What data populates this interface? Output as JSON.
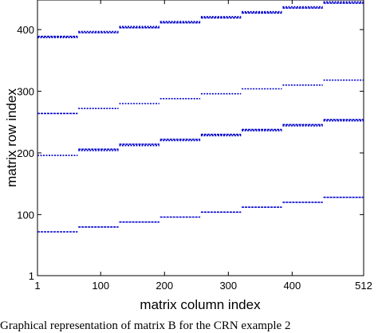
{
  "chart_data": {
    "type": "scatter",
    "xlabel": "matrix column index",
    "ylabel": "matrix row index",
    "xlim": [
      1,
      512
    ],
    "ylim": [
      1,
      448
    ],
    "x_ticks": [
      1,
      100,
      200,
      300,
      400,
      512
    ],
    "y_ticks": [
      1,
      100,
      200,
      300,
      400
    ],
    "grid": false,
    "marker_color": "#0000cc",
    "segments": [
      {
        "x": [
          1,
          64
        ],
        "rows": [
          72,
          196,
          264,
          387,
          389
        ]
      },
      {
        "x": [
          65,
          128
        ],
        "rows": [
          80,
          204,
          206,
          272,
          395,
          397
        ]
      },
      {
        "x": [
          129,
          192
        ],
        "rows": [
          88,
          212,
          214,
          280,
          403,
          405
        ]
      },
      {
        "x": [
          193,
          256
        ],
        "rows": [
          96,
          220,
          222,
          288,
          411,
          413
        ]
      },
      {
        "x": [
          257,
          320
        ],
        "rows": [
          104,
          228,
          230,
          296,
          419,
          421
        ]
      },
      {
        "x": [
          321,
          384
        ],
        "rows": [
          112,
          236,
          238,
          304,
          427,
          429
        ]
      },
      {
        "x": [
          385,
          448
        ],
        "rows": [
          120,
          244,
          246,
          310,
          435,
          437
        ]
      },
      {
        "x": [
          449,
          512
        ],
        "rows": [
          128,
          252,
          254,
          318,
          443,
          445
        ]
      }
    ]
  },
  "caption": "Graphical representation of matrix B for the CRN example 2"
}
